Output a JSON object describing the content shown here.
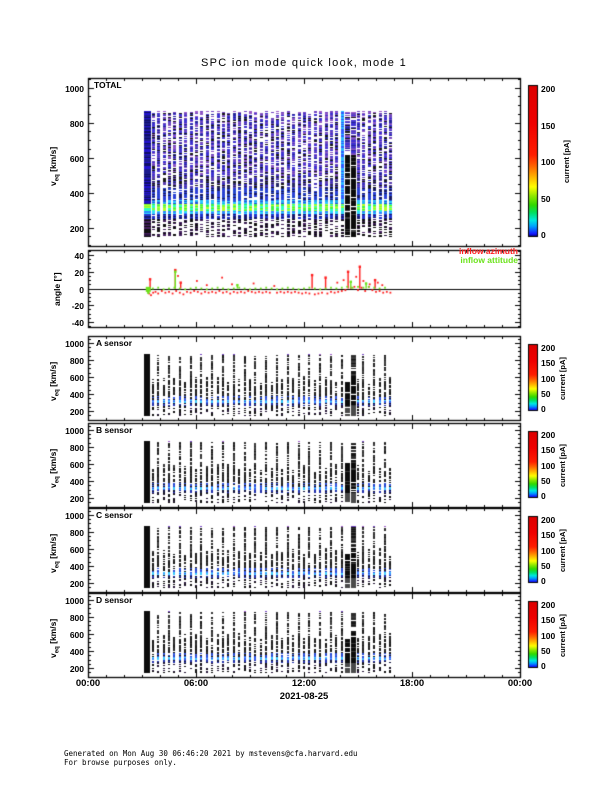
{
  "title": "SPC ion mode quick look, mode 1",
  "axes": {
    "time_ticks": [
      "00:00",
      "06:00",
      "12:00",
      "18:00",
      "00:00"
    ],
    "date": "2021-08-25",
    "v_label_main": "v",
    "v_label_sub": "eq",
    "v_label_units": " [km/s]",
    "angle_label": "angle [°]",
    "v_ticks": [
      "200",
      "400",
      "600",
      "800",
      "1000"
    ],
    "angle_ticks": [
      "40",
      "20",
      "0",
      "-20",
      "-40"
    ]
  },
  "legend": {
    "azimuth": "inflow azimuth",
    "attitude": "inflow attitude",
    "azimuth_color": "#ff1e1e",
    "attitude_color": "#6ce31c"
  },
  "colorbar": {
    "label": "current [pA]",
    "ticks": [
      "0",
      "50",
      "100",
      "150",
      "200"
    ]
  },
  "panel_labels": {
    "total": "TOTAL",
    "a": "A sensor",
    "b": "B sensor",
    "c": "C sensor",
    "d": "D sensor"
  },
  "footer": {
    "line1": "Generated on Mon Aug 30 06:46:20 2021 by mstevens@cfa.harvard.edu",
    "line2": "For browse purposes only."
  },
  "chart_data": {
    "type": "heatmap",
    "title": "SPC ion mode quick look, mode 1",
    "x_axis": {
      "label": "2021-08-25",
      "tick_labels": [
        "00:00",
        "06:00",
        "12:00",
        "18:00",
        "00:00"
      ],
      "hours_range": [
        0,
        24
      ]
    },
    "bursts": {
      "start": 3.3,
      "end": 16.8,
      "period": 0.3,
      "special": 14.05,
      "cluster": [
        14.15,
        14.75
      ]
    },
    "colorbar": {
      "label": "current [pA]",
      "ticks": [
        0,
        50,
        100,
        150,
        200
      ],
      "range_pA": [
        0,
        200
      ]
    },
    "colorbar_stops": [
      [
        0.0,
        "#00004d"
      ],
      [
        0.02,
        "#1414ff"
      ],
      [
        0.07,
        "#00a0ff"
      ],
      [
        0.11,
        "#00e8e0"
      ],
      [
        0.16,
        "#00e060"
      ],
      [
        0.21,
        "#30d800"
      ],
      [
        0.27,
        "#90e800"
      ],
      [
        0.33,
        "#ffff00"
      ],
      [
        0.4,
        "#ffae00"
      ],
      [
        0.47,
        "#ff6000"
      ],
      [
        0.54,
        "#ff1e00"
      ],
      [
        0.75,
        "#f00000"
      ],
      [
        1.0,
        "#dc0000"
      ]
    ],
    "sensor_bands": [
      {
        "v": [
          860,
          872
        ],
        "palette": [
          "#9b59c8",
          "#7040c0"
        ],
        "density": 0.35
      },
      {
        "v": [
          560,
          860
        ],
        "palette": [
          "#161616",
          "#2c2c2c",
          "#3a3a3a"
        ],
        "density": 0.75
      },
      {
        "v": [
          380,
          560
        ],
        "palette": [
          "#141414",
          "#262626",
          "#1d1d1d"
        ],
        "density": 0.8
      },
      {
        "v": [
          340,
          380
        ],
        "palette": [
          "#2244cc",
          "#1a1a1a",
          "#3355dd"
        ],
        "density": 0.9
      },
      {
        "v": [
          298,
          340
        ],
        "palette": [
          "#3d8fff",
          "#35c8ff",
          "#2a55e8",
          "#4ad2ff"
        ],
        "density": 1
      },
      {
        "v": [
          268,
          298
        ],
        "palette": [
          "#1f2daa",
          "#101038"
        ],
        "density": 0.9
      },
      {
        "v": [
          150,
          268
        ],
        "palette": [
          "#101010",
          "#241436",
          "#101010"
        ],
        "density": 0.5
      }
    ],
    "panels": [
      {
        "id": "total",
        "label": "TOTAL",
        "type": "spectrogram",
        "ylabel": "veq [km/s]",
        "ylim": [
          95,
          1055
        ],
        "yticks": [
          200,
          400,
          600,
          800,
          1000
        ],
        "velocity_extent_kms": [
          150,
          870
        ],
        "bright_band_kms": [
          296,
          338
        ],
        "bright_band_peak_pA": 60,
        "bands": [
          {
            "v": [
              860,
              872
            ],
            "palette": [
              "#9b59c8",
              "#7040c0"
            ],
            "density": 0.5
          },
          {
            "v": [
              500,
              860
            ],
            "palette": [
              "#4636cf",
              "#6b46bd",
              "#3c30d2",
              "#8e57c4",
              "#262699",
              "#1a1a1a"
            ],
            "density": 0.8
          },
          {
            "v": [
              430,
              500
            ],
            "palette": [
              "#3a2fc0",
              "#2a2a66",
              "#1a1a1a",
              "#5b3fb0"
            ],
            "density": 0.85
          },
          {
            "v": [
              360,
              430
            ],
            "palette": [
              "#2f3fd8",
              "#2244cc",
              "#181a60"
            ],
            "density": 0.9
          },
          {
            "v": [
              338,
              360
            ],
            "palette": [
              "#22aaee",
              "#2fc8ff",
              "#2255dd"
            ],
            "density": 1
          },
          {
            "v": [
              296,
              338
            ],
            "palette": [
              "#3ef24a",
              "#7dff3c",
              "#2fffc0",
              "#b8ff2a"
            ],
            "density": 1
          },
          {
            "v": [
              278,
              296
            ],
            "palette": [
              "#2fd8ff",
              "#2b88ff"
            ],
            "density": 1
          },
          {
            "v": [
              252,
              278
            ],
            "palette": [
              "#2233cc",
              "#141a70"
            ],
            "density": 0.95
          },
          {
            "v": [
              150,
              252
            ],
            "palette": [
              "#101010",
              "#2a1440",
              "#462060",
              "#101010"
            ],
            "density": 0.55
          }
        ]
      },
      {
        "id": "angle",
        "type": "scatter",
        "ylabel": "angle [°]",
        "ylim": [
          -46,
          46
        ],
        "yticks": [
          40,
          20,
          0,
          -20,
          -40
        ],
        "series": [
          {
            "name": "inflow azimuth",
            "color": "#ff1e1e",
            "points": [
              [
                3.3,
                -3
              ],
              [
                3.4,
                -6
              ],
              [
                3.5,
                -8
              ],
              [
                3.62,
                -5
              ],
              [
                3.75,
                -4
              ],
              [
                3.9,
                -6
              ],
              [
                4.1,
                -3
              ],
              [
                4.3,
                -5
              ],
              [
                4.5,
                -4
              ],
              [
                4.7,
                -6
              ],
              [
                4.9,
                -3
              ],
              [
                5.0,
                15
              ],
              [
                5.1,
                -5
              ],
              [
                5.3,
                -7
              ],
              [
                5.5,
                -4
              ],
              [
                5.7,
                -5
              ],
              [
                5.9,
                -3
              ],
              [
                6.05,
                9
              ],
              [
                6.1,
                -4
              ],
              [
                6.3,
                -6
              ],
              [
                6.5,
                -4
              ],
              [
                6.6,
                4
              ],
              [
                6.7,
                -5
              ],
              [
                6.9,
                -4
              ],
              [
                7.1,
                -5
              ],
              [
                7.3,
                -3
              ],
              [
                7.45,
                13
              ],
              [
                7.5,
                -5
              ],
              [
                7.7,
                -4
              ],
              [
                7.9,
                -6
              ],
              [
                8.0,
                5
              ],
              [
                8.1,
                -4
              ],
              [
                8.3,
                -5
              ],
              [
                8.5,
                -4
              ],
              [
                8.7,
                -5
              ],
              [
                8.9,
                -3
              ],
              [
                9.1,
                -4
              ],
              [
                9.2,
                6
              ],
              [
                9.3,
                -5
              ],
              [
                9.5,
                -4
              ],
              [
                9.7,
                -5
              ],
              [
                9.9,
                -4
              ],
              [
                10.1,
                -5
              ],
              [
                10.35,
                3
              ],
              [
                10.5,
                -5
              ],
              [
                10.7,
                -4
              ],
              [
                10.9,
                -5
              ],
              [
                11.1,
                -4
              ],
              [
                11.3,
                -5
              ],
              [
                11.5,
                -4
              ],
              [
                11.7,
                -5
              ],
              [
                11.9,
                -6
              ],
              [
                12.1,
                -5
              ],
              [
                12.3,
                -6
              ],
              [
                12.6,
                -7
              ],
              [
                12.8,
                -6
              ],
              [
                13.0,
                -5
              ],
              [
                13.3,
                -6
              ],
              [
                13.5,
                -4
              ],
              [
                13.7,
                -5
              ],
              [
                13.85,
                7
              ],
              [
                13.9,
                -4
              ],
              [
                14.1,
                -3
              ],
              [
                14.2,
                10
              ],
              [
                14.3,
                -2
              ],
              [
                14.6,
                1
              ],
              [
                14.8,
                2
              ],
              [
                14.9,
                14
              ],
              [
                15.0,
                -2
              ],
              [
                15.2,
                1
              ],
              [
                15.3,
                9
              ],
              [
                15.4,
                -3
              ],
              [
                15.6,
                2
              ],
              [
                15.65,
                5
              ],
              [
                15.8,
                -2
              ],
              [
                16.0,
                -4
              ],
              [
                16.1,
                7
              ],
              [
                16.2,
                -3
              ],
              [
                16.35,
                4
              ],
              [
                16.4,
                -5
              ],
              [
                16.6,
                -4
              ],
              [
                16.8,
                -5
              ]
            ],
            "spikes": [
              [
                3.45,
                11
              ],
              [
                4.85,
                22
              ],
              [
                5.15,
                7
              ],
              [
                12.45,
                16
              ],
              [
                13.2,
                13
              ],
              [
                14.45,
                20
              ],
              [
                15.1,
                26
              ],
              [
                15.95,
                10
              ]
            ]
          },
          {
            "name": "inflow attitude",
            "color": "#6ce31c",
            "points": [
              [
                3.35,
                -1
              ],
              [
                3.6,
                0
              ],
              [
                3.9,
                1
              ],
              [
                4.2,
                -1
              ],
              [
                4.5,
                0
              ],
              [
                4.8,
                1
              ],
              [
                5.1,
                0
              ],
              [
                5.4,
                -1
              ],
              [
                5.7,
                0
              ],
              [
                6.0,
                1
              ],
              [
                6.3,
                0
              ],
              [
                6.6,
                -1
              ],
              [
                6.9,
                0
              ],
              [
                7.2,
                1
              ],
              [
                7.5,
                0
              ],
              [
                7.8,
                -1
              ],
              [
                8.1,
                0
              ],
              [
                8.4,
                1
              ],
              [
                8.7,
                0
              ],
              [
                9.0,
                -1
              ],
              [
                9.3,
                0
              ],
              [
                9.6,
                0
              ],
              [
                9.9,
                1
              ],
              [
                10.2,
                0
              ],
              [
                10.5,
                -1
              ],
              [
                10.8,
                0
              ],
              [
                11.1,
                1
              ],
              [
                11.4,
                0
              ],
              [
                11.7,
                -1
              ],
              [
                12.0,
                0
              ],
              [
                12.3,
                1
              ],
              [
                12.6,
                0
              ],
              [
                12.9,
                -1
              ],
              [
                13.2,
                0
              ],
              [
                13.5,
                1
              ],
              [
                13.8,
                0
              ],
              [
                14.1,
                1
              ],
              [
                14.4,
                2
              ],
              [
                14.7,
                1
              ],
              [
                15.0,
                2
              ],
              [
                15.3,
                1
              ],
              [
                15.6,
                2
              ],
              [
                15.9,
                1
              ],
              [
                16.2,
                0
              ],
              [
                16.5,
                1
              ]
            ],
            "spikes": [
              [
                3.35,
                -5
              ],
              [
                4.85,
                20
              ],
              [
                8.3,
                4
              ],
              [
                14.6,
                8
              ],
              [
                15.45,
                6
              ]
            ],
            "blob": [
              3.35,
              -1
            ]
          }
        ]
      },
      {
        "id": "a",
        "label": "A sensor",
        "type": "spectrogram",
        "ylabel": "veq [km/s]",
        "ylim": [
          95,
          1080
        ],
        "yticks": [
          200,
          400,
          600,
          800,
          1000
        ],
        "velocity_extent_kms": [
          150,
          870
        ],
        "bright_band_kms": [
          298,
          340
        ]
      },
      {
        "id": "b",
        "label": "B sensor",
        "type": "spectrogram",
        "ylabel": "veq [km/s]",
        "ylim": [
          95,
          1080
        ],
        "yticks": [
          200,
          400,
          600,
          800,
          1000
        ],
        "velocity_extent_kms": [
          150,
          870
        ],
        "bright_band_kms": [
          298,
          340
        ]
      },
      {
        "id": "c",
        "label": "C sensor",
        "type": "spectrogram",
        "ylabel": "veq [km/s]",
        "ylim": [
          95,
          1080
        ],
        "yticks": [
          200,
          400,
          600,
          800,
          1000
        ],
        "velocity_extent_kms": [
          150,
          870
        ],
        "bright_band_kms": [
          298,
          340
        ]
      },
      {
        "id": "d",
        "label": "D sensor",
        "type": "spectrogram",
        "ylabel": "veq [km/s]",
        "ylim": [
          95,
          1080
        ],
        "yticks": [
          200,
          400,
          600,
          800,
          1000
        ],
        "velocity_extent_kms": [
          150,
          870
        ],
        "bright_band_kms": [
          298,
          340
        ]
      }
    ]
  }
}
